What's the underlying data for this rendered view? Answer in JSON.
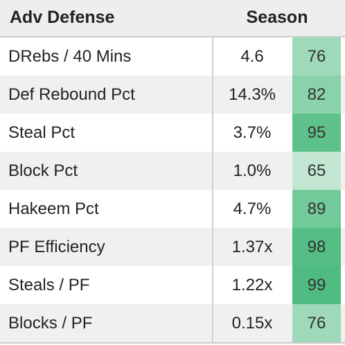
{
  "table": {
    "title": "Adv Defense",
    "column_header": "Season",
    "rows": [
      {
        "label": "DRebs / 40 Mins",
        "value": "4.6",
        "percentile": "76",
        "percentile_num": 76
      },
      {
        "label": "Def Rebound Pct",
        "value": "14.3%",
        "percentile": "82",
        "percentile_num": 82
      },
      {
        "label": "Steal Pct",
        "value": "3.7%",
        "percentile": "95",
        "percentile_num": 95
      },
      {
        "label": "Block Pct",
        "value": "1.0%",
        "percentile": "65",
        "percentile_num": 65
      },
      {
        "label": "Hakeem Pct",
        "value": "4.7%",
        "percentile": "89",
        "percentile_num": 89
      },
      {
        "label": "PF Efficiency",
        "value": "1.37x",
        "percentile": "98",
        "percentile_num": 98
      },
      {
        "label": "Steals / PF",
        "value": "1.22x",
        "percentile": "99",
        "percentile_num": 99
      },
      {
        "label": "Blocks / PF",
        "value": "0.15x",
        "percentile": "76",
        "percentile_num": 76
      }
    ]
  },
  "colors": {
    "header_bg": "#eeeeee",
    "row_alt_bg": "#f0f0f0",
    "percentile_low": "#d4eddf",
    "percentile_high": "#4dbb7f"
  }
}
